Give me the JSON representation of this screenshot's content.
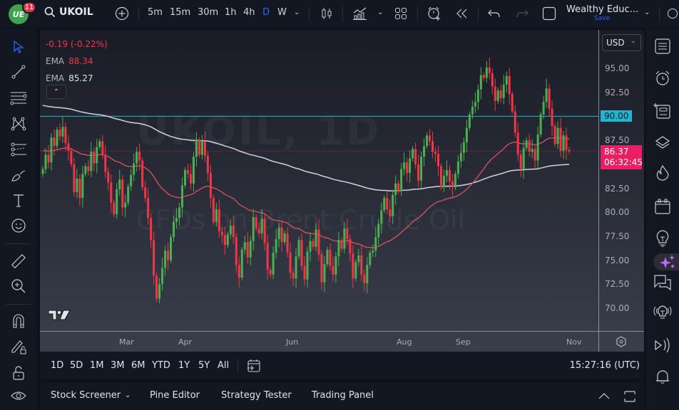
{
  "header": {
    "notification_count": "11",
    "symbol": "UKOIL",
    "timeframes": [
      "5m",
      "15m",
      "30m",
      "1h",
      "4h",
      "D",
      "W"
    ],
    "active_timeframe": "D",
    "layout_name": "Wealthy Educ...",
    "save_label": "Save"
  },
  "legend": {
    "change": "-0.19 (-0.22%)",
    "ema1_label": "EMA",
    "ema1_value": "88.34",
    "ema2_label": "EMA",
    "ema2_value": "85.27"
  },
  "watermark": {
    "line1": "UKOIL, 1D",
    "line2": "CFDs on Brent Crude Oil"
  },
  "price_scale": {
    "currency": "USD",
    "ticks": [
      "95.00",
      "92.50",
      "90.00",
      "87.50",
      "82.50",
      "80.00",
      "77.50",
      "75.00",
      "72.50",
      "70.00"
    ],
    "horizontal_line_label": "90.00",
    "last_price": "86.37",
    "countdown": "06:32:45"
  },
  "time_scale": {
    "ticks": [
      "Mar",
      "Apr",
      "Jun",
      "Aug",
      "Sep",
      "Nov"
    ]
  },
  "bottom_toolbar": {
    "ranges": [
      "1D",
      "5D",
      "1M",
      "3M",
      "6M",
      "YTD",
      "1Y",
      "5Y",
      "All"
    ],
    "clock": "15:27:16 (UTC)"
  },
  "panel_tabs": {
    "stock_screener": "Stock Screener",
    "pine_editor": "Pine Editor",
    "strategy_tester": "Strategy Tester",
    "trading_panel": "Trading Panel"
  },
  "colors": {
    "up": "#4caf50",
    "down": "#f23645",
    "ema_fast": "#e0505e",
    "ema_slow": "#d1d4dc",
    "hline": "#22b5d0",
    "last_price_bg": "#e91e63",
    "accent": "#2962ff"
  },
  "chart_data": {
    "type": "candlestick",
    "title": "UKOIL, 1D — CFDs on Brent Crude Oil",
    "ylim": [
      68.5,
      97
    ],
    "x_ticks": [
      "Mar",
      "Apr",
      "Jun",
      "Aug",
      "Sep",
      "Nov"
    ],
    "horizontal_line": 90.0,
    "last_price": 86.37,
    "ema_fast_last": 88.34,
    "ema_slow_last": 85.27,
    "closes": [
      84.5,
      86.0,
      85.2,
      87.8,
      86.9,
      88.6,
      87.9,
      88.9,
      87.2,
      86.4,
      85.0,
      82.1,
      83.5,
      81.5,
      84.0,
      84.8,
      84.3,
      86.3,
      85.1,
      86.8,
      87.4,
      86.0,
      84.2,
      83.1,
      81.0,
      79.8,
      82.4,
      83.4,
      80.5,
      81.0,
      82.7,
      83.9,
      85.1,
      86.3,
      85.4,
      82.6,
      81.5,
      79.4,
      77.1,
      73.4,
      71.0,
      72.5,
      74.2,
      76.0,
      75.0,
      77.4,
      79.0,
      79.4,
      80.5,
      82.8,
      84.4,
      84.0,
      83.0,
      85.8,
      87.5,
      86.0,
      87.4,
      85.9,
      84.1,
      81.5,
      79.0,
      80.3,
      78.0,
      77.6,
      76.6,
      77.7,
      78.6,
      77.4,
      74.5,
      73.2,
      76.1,
      76.9,
      75.3,
      77.0,
      79.5,
      78.3,
      77.8,
      79.3,
      76.8,
      74.0,
      73.5,
      75.8,
      77.2,
      78.4,
      76.9,
      77.8,
      75.8,
      73.7,
      73.1,
      75.4,
      77.1,
      74.4,
      73.0,
      75.9,
      77.0,
      76.4,
      78.2,
      75.6,
      72.7,
      74.6,
      76.1,
      74.4,
      73.5,
      75.4,
      77.1,
      76.2,
      78.3,
      77.2,
      75.7,
      73.1,
      74.8,
      75.5,
      73.5,
      72.6,
      74.5,
      75.8,
      76.0,
      77.4,
      78.8,
      80.2,
      81.5,
      80.3,
      79.6,
      81.8,
      83.0,
      82.2,
      84.5,
      85.2,
      84.1,
      85.6,
      86.6,
      85.0,
      83.3,
      85.8,
      86.9,
      88.0,
      87.4,
      86.3,
      86.1,
      84.8,
      82.6,
      83.8,
      84.4,
      83.2,
      82.6,
      84.0,
      85.3,
      86.2,
      87.3,
      88.8,
      90.2,
      91.0,
      91.5,
      92.8,
      94.3,
      94.0,
      95.1,
      94.5,
      93.1,
      91.6,
      92.7,
      91.9,
      93.3,
      94.2,
      92.3,
      90.5,
      88.3,
      86.0,
      84.5,
      86.7,
      87.5,
      86.3,
      86.6,
      85.4,
      88.1,
      90.2,
      91.5,
      92.9,
      90.8,
      89.0,
      87.1,
      88.8,
      86.4,
      88.0,
      86.5,
      86.37
    ]
  }
}
